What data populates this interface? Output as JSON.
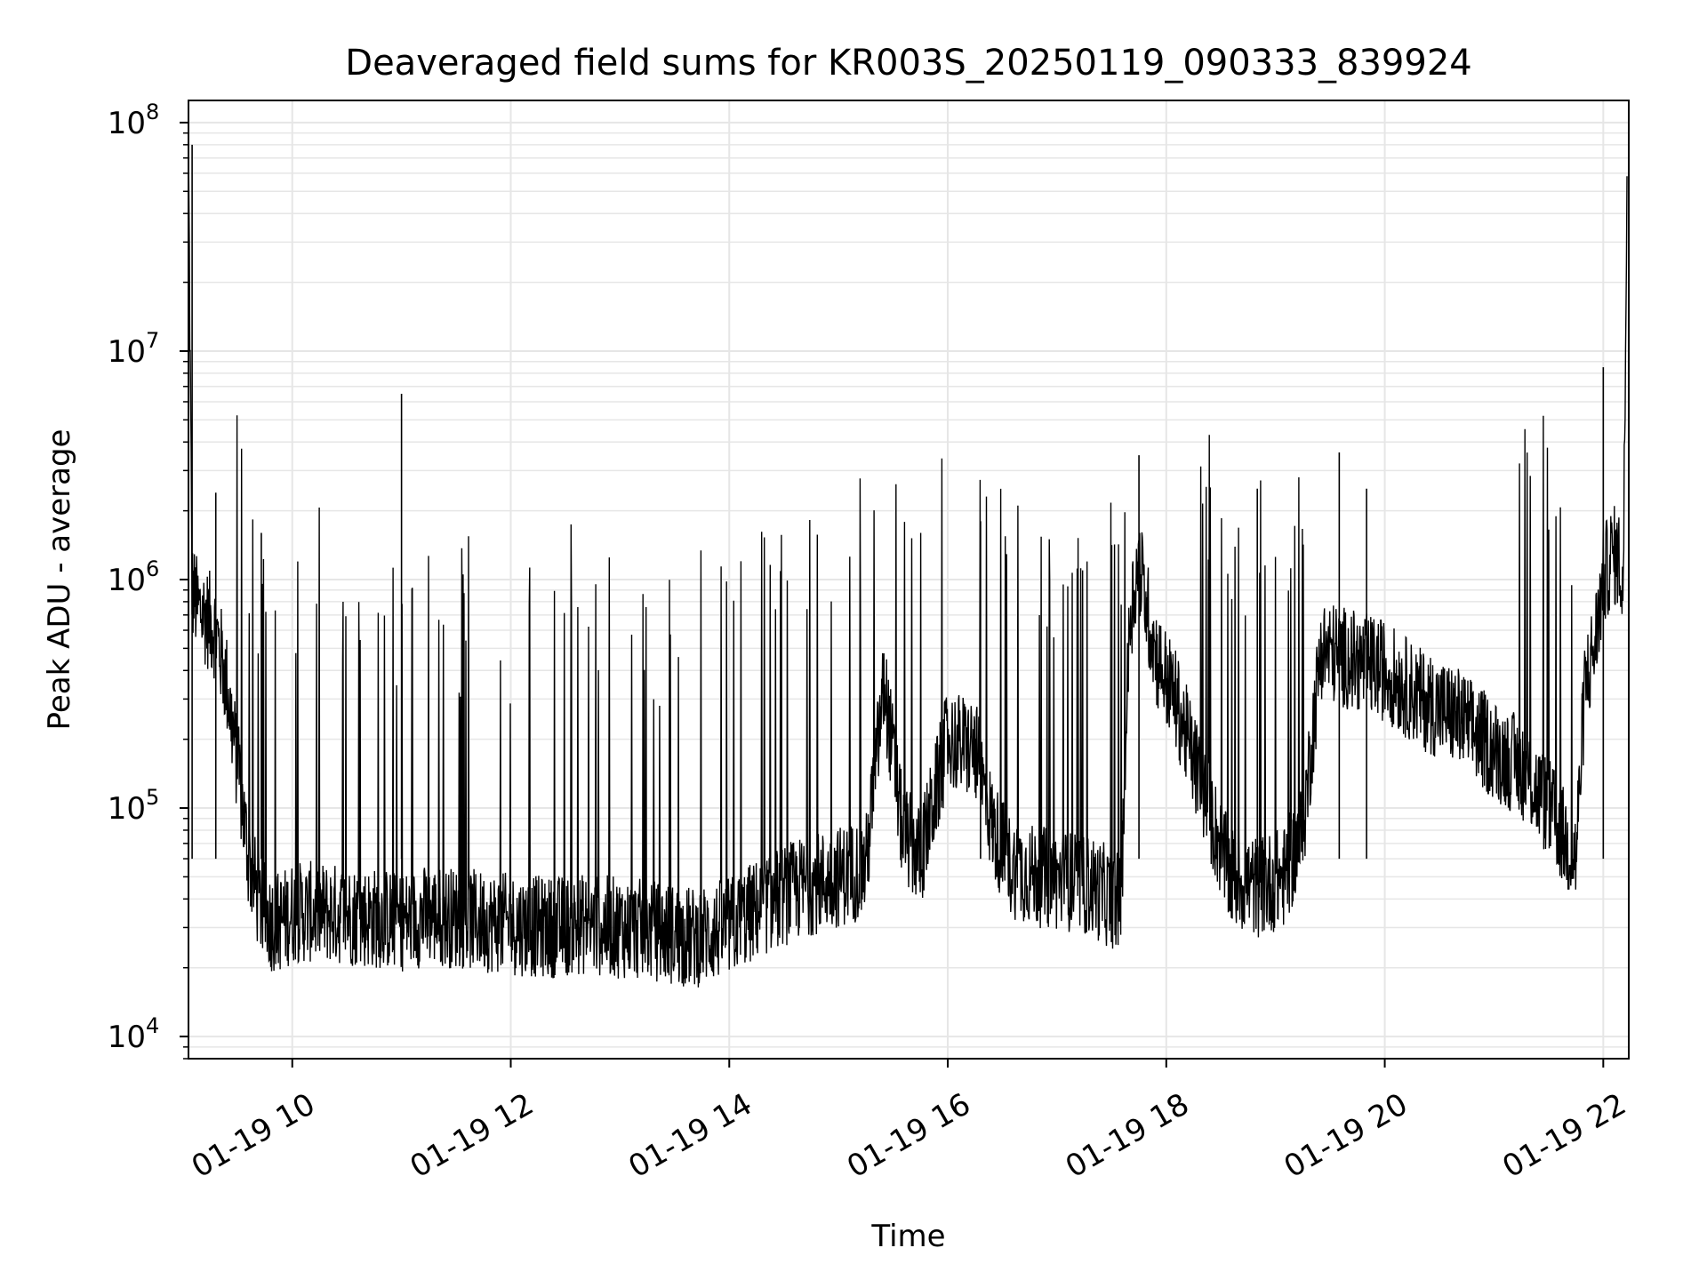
{
  "chart_data": {
    "type": "line",
    "title": "Deaveraged field sums for KR003S_20250119_090333_839924",
    "xlabel": "Time",
    "ylabel": "Peak ADU - average",
    "yscale": "log",
    "ylim": [
      8000,
      125000000
    ],
    "xlim": [
      "2025-01-19 09:03",
      "2025-01-19 22:14"
    ],
    "grid": true,
    "x_ticks": [
      {
        "t": "2025-01-19 10:00",
        "label": "01-19 10"
      },
      {
        "t": "2025-01-19 12:00",
        "label": "01-19 12"
      },
      {
        "t": "2025-01-19 14:00",
        "label": "01-19 14"
      },
      {
        "t": "2025-01-19 16:00",
        "label": "01-19 16"
      },
      {
        "t": "2025-01-19 18:00",
        "label": "01-19 18"
      },
      {
        "t": "2025-01-19 20:00",
        "label": "01-19 20"
      },
      {
        "t": "2025-01-19 22:00",
        "label": "01-19 22"
      }
    ],
    "y_ticks": [
      {
        "value": 10000,
        "base": "10",
        "exp": "4"
      },
      {
        "value": 100000,
        "base": "10",
        "exp": "5"
      },
      {
        "value": 1000000,
        "base": "10",
        "exp": "6"
      },
      {
        "value": 10000000,
        "base": "10",
        "exp": "7"
      },
      {
        "value": 100000000,
        "base": "10",
        "exp": "8"
      }
    ],
    "line_color": "#000000",
    "grid_color": "#e6e6e6",
    "series": [
      {
        "x": [
          "2025-01-19 09:03",
          "2025-01-19 09:05",
          "2025-01-19 09:08",
          "2025-01-19 09:12",
          "2025-01-19 09:18",
          "2025-01-19 09:24",
          "2025-01-19 09:30",
          "2025-01-19 09:36",
          "2025-01-19 09:42",
          "2025-01-19 09:48",
          "2025-01-19 09:54",
          "2025-01-19 10:00",
          "2025-01-19 10:15",
          "2025-01-19 10:30",
          "2025-01-19 10:45",
          "2025-01-19 11:00",
          "2025-01-19 11:15",
          "2025-01-19 11:30",
          "2025-01-19 11:45",
          "2025-01-19 12:00",
          "2025-01-19 12:20",
          "2025-01-19 12:40",
          "2025-01-19 13:00",
          "2025-01-19 13:20",
          "2025-01-19 13:40",
          "2025-01-19 14:00",
          "2025-01-19 14:20",
          "2025-01-19 14:40",
          "2025-01-19 15:00",
          "2025-01-19 15:15",
          "2025-01-19 15:25",
          "2025-01-19 15:35",
          "2025-01-19 15:45",
          "2025-01-19 16:00",
          "2025-01-19 16:15",
          "2025-01-19 16:25",
          "2025-01-19 16:35",
          "2025-01-19 16:50",
          "2025-01-19 17:05",
          "2025-01-19 17:20",
          "2025-01-19 17:35",
          "2025-01-19 17:40",
          "2025-01-19 17:45",
          "2025-01-19 17:50",
          "2025-01-19 17:55",
          "2025-01-19 18:05",
          "2025-01-19 18:20",
          "2025-01-19 18:35",
          "2025-01-19 18:50",
          "2025-01-19 19:05",
          "2025-01-19 19:15",
          "2025-01-19 19:25",
          "2025-01-19 19:40",
          "2025-01-19 20:00",
          "2025-01-19 20:20",
          "2025-01-19 20:40",
          "2025-01-19 21:00",
          "2025-01-19 21:15",
          "2025-01-19 21:30",
          "2025-01-19 21:40",
          "2025-01-19 21:45",
          "2025-01-19 21:50",
          "2025-01-19 21:55",
          "2025-01-19 22:00",
          "2025-01-19 22:05",
          "2025-01-19 22:09",
          "2025-01-19 22:11",
          "2025-01-19 22:13"
        ],
        "y": [
          70000000,
          900000,
          750000,
          700000,
          600000,
          350000,
          150000,
          60000,
          38000,
          32000,
          32000,
          35000,
          35000,
          34000,
          33000,
          32000,
          34000,
          33000,
          32000,
          31000,
          30000,
          31000,
          30000,
          29000,
          27000,
          30000,
          38000,
          45000,
          50000,
          55000,
          350000,
          80000,
          60000,
          200000,
          180000,
          80000,
          55000,
          50000,
          48000,
          45000,
          38000,
          700000,
          1200000,
          700000,
          450000,
          300000,
          120000,
          50000,
          45000,
          50000,
          80000,
          500000,
          450000,
          400000,
          300000,
          250000,
          180000,
          150000,
          100000,
          70000,
          60000,
          350000,
          500000,
          1000000,
          1300000,
          1200000,
          900000,
          50000000
        ]
      }
    ],
    "spikes": [
      {
        "x": "2025-01-19 09:05",
        "y": 80000000
      },
      {
        "x": "2025-01-19 09:18",
        "y": 2400000
      },
      {
        "x": "2025-01-19 09:43",
        "y": 1600000
      },
      {
        "x": "2025-01-19 11:00",
        "y": 6500000
      },
      {
        "x": "2025-01-19 16:18",
        "y": 1800000
      },
      {
        "x": "2025-01-19 17:45",
        "y": 3500000
      },
      {
        "x": "2025-01-19 18:50",
        "y": 2500000
      },
      {
        "x": "2025-01-19 19:35",
        "y": 3600000
      },
      {
        "x": "2025-01-19 19:50",
        "y": 2500000
      },
      {
        "x": "2025-01-19 22:00",
        "y": 8500000
      }
    ]
  }
}
